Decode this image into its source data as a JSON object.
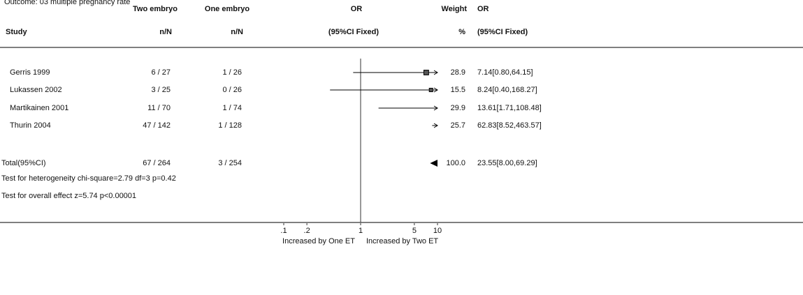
{
  "chart_data": {
    "type": "forest",
    "title": "Outcome:     03 multiple pregnancy rate",
    "headers": {
      "study": "Study",
      "group1": "Two embryo",
      "group1_sub": "n/N",
      "group2": "One embryo",
      "group2_sub": "n/N",
      "or": "OR",
      "or_sub": "(95%CI Fixed)",
      "weight": "Weight",
      "weight_sub": "%",
      "or2": "OR",
      "or2_sub": "(95%CI Fixed)"
    },
    "categories": [
      "Gerris 1999",
      "Lukassen 2002",
      "Martikainen 2001",
      "Thurin 2004"
    ],
    "group1": [
      "6 / 27",
      "3 / 25",
      "11 / 70",
      "47 / 142"
    ],
    "group2": [
      "1 / 26",
      "0 / 26",
      "1 / 74",
      "1 / 128"
    ],
    "values": [
      7.14,
      8.24,
      13.61,
      62.83
    ],
    "lower": [
      0.8,
      0.4,
      1.71,
      8.52
    ],
    "upper": [
      64.15,
      168.27,
      108.48,
      463.57
    ],
    "value_labels": [
      "7.14[0.80,64.15]",
      "8.24[0.40,168.27]",
      "13.61[1.71,108.48]",
      "62.83[8.52,463.57]"
    ],
    "weights": [
      28.9,
      15.5,
      29.9,
      25.7
    ],
    "total": {
      "label": "Total(95%CI)",
      "group1": "67 / 264",
      "group2": "3 / 254",
      "weight": {
        "value": 100,
        "label": "100.0"
      },
      "value": 23.55,
      "lower": 8.0,
      "upper": 69.29,
      "value_label": "23.55[8.00,69.29]"
    },
    "notes": [
      "Test for heterogeneity chi-square=2.79  df=3  p=0.42",
      "Test for overall effect  z=5.74  p<0.00001"
    ],
    "log_x": true,
    "xlim": [
      0.1,
      10
    ],
    "xticks": [
      {
        "value": 0.1,
        "label": ".1"
      },
      {
        "value": 0.2,
        "label": ".2"
      },
      1,
      5,
      10
    ],
    "xlabel_left": "Increased by  One ET",
    "xlabel_right": "Increased by  Two ET",
    "color": "#000000"
  }
}
